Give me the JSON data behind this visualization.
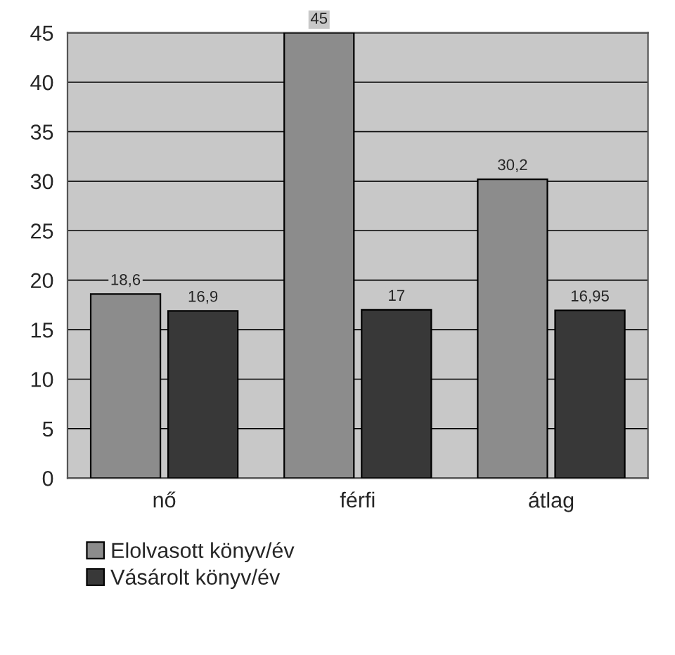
{
  "chart_data": {
    "type": "bar",
    "categories": [
      "nő",
      "férfi",
      "átlag"
    ],
    "series": [
      {
        "name": "Elolvasott könyv/év",
        "color": "#8c8c8c",
        "values": [
          18.6,
          45,
          30.2
        ],
        "value_labels": [
          "18,6",
          "45",
          "30,2"
        ]
      },
      {
        "name": "Vásárolt könyv/év",
        "color": "#383838",
        "values": [
          16.9,
          17,
          16.95
        ],
        "value_labels": [
          "16,9",
          "17",
          "16,95"
        ]
      }
    ],
    "ylim": [
      0,
      45
    ],
    "yticks": [
      0,
      5,
      10,
      15,
      20,
      25,
      30,
      35,
      40,
      45
    ],
    "grid": "y",
    "legend": "bottom"
  }
}
